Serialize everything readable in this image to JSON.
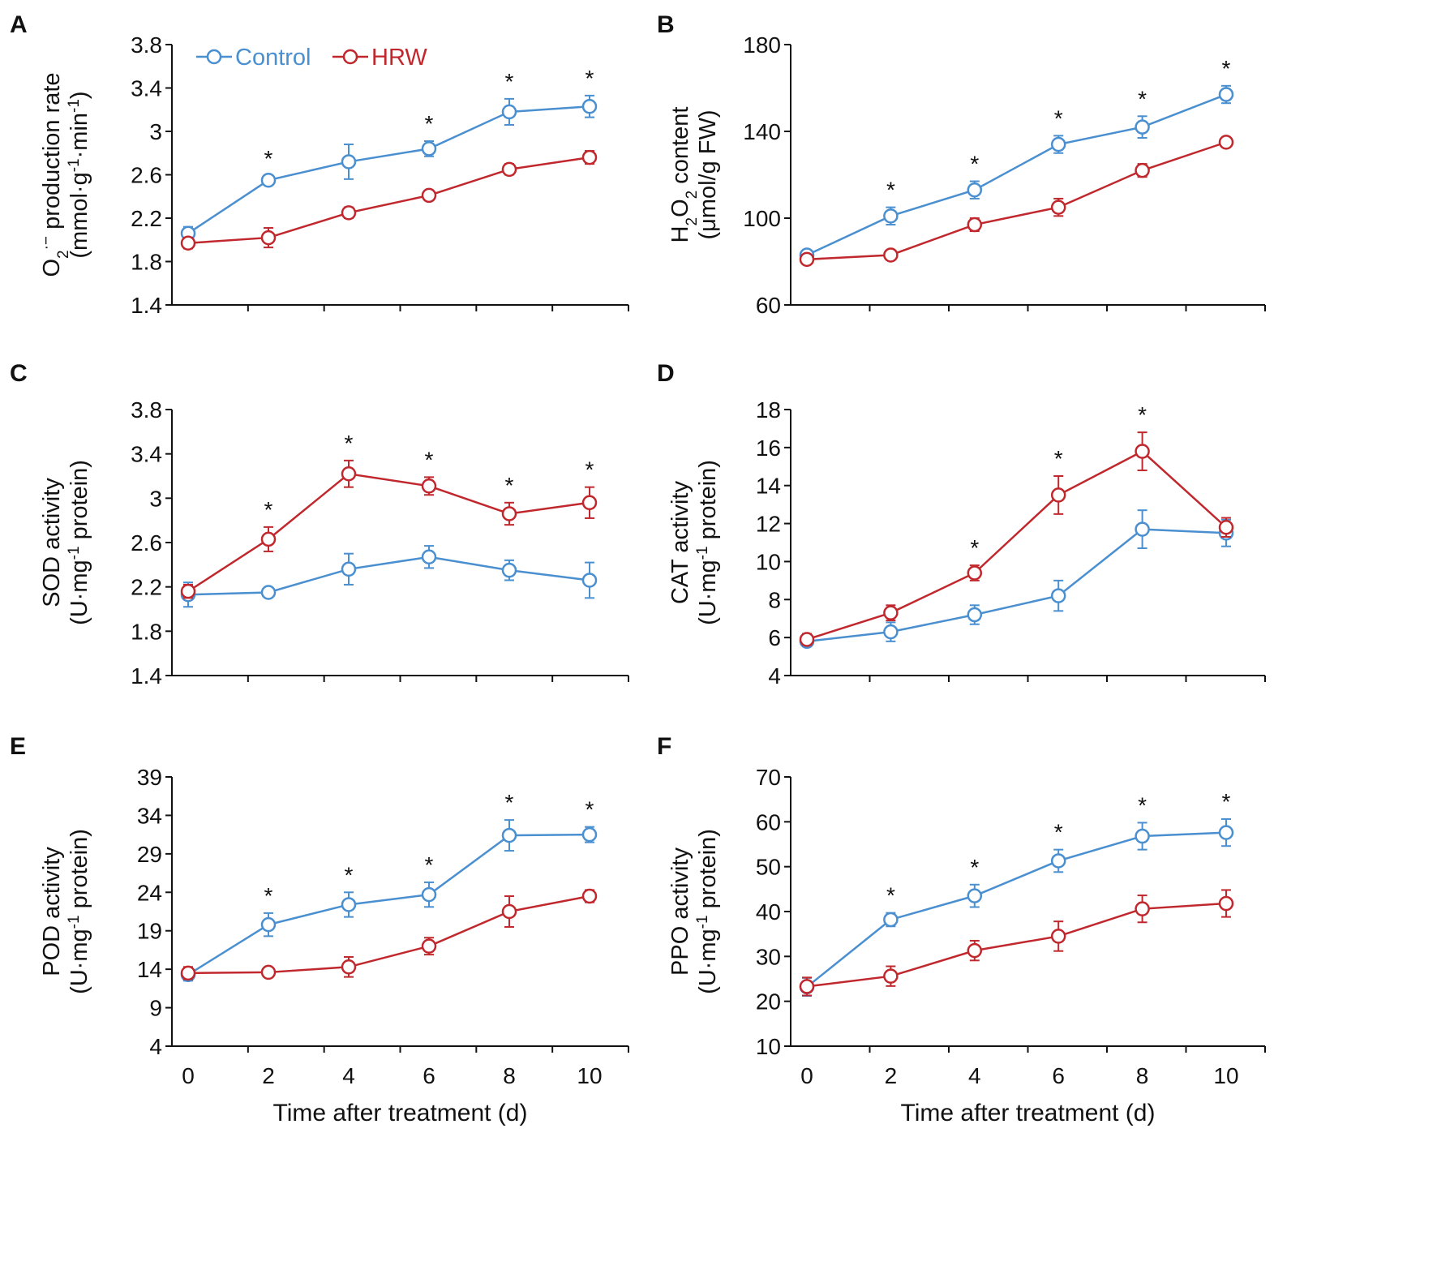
{
  "figure": {
    "colors": {
      "control": "#4a8fd0",
      "hrw": "#c0282d",
      "axis": "#111111"
    },
    "legend": [
      {
        "name": "Control",
        "color": "#4a8fd0"
      },
      {
        "name": "HRW",
        "color": "#c0282d"
      }
    ],
    "x_tick_labels": [
      "0",
      "2",
      "4",
      "6",
      "8",
      "10"
    ],
    "xlabel": "Time after treatment (d)"
  },
  "chart_data": [
    {
      "id": "A",
      "panel_label": "A",
      "type": "line",
      "title": "",
      "ylabel_line1_parts": [
        "O",
        "2",
        "·−",
        " production rate"
      ],
      "ylabel_line2_parts": [
        "(mmol·g",
        "-1",
        "·min",
        "-1",
        ")"
      ],
      "ylim": [
        1.4,
        3.8
      ],
      "yticks": [
        1.4,
        1.8,
        2.2,
        2.6,
        3.0,
        3.4,
        3.8
      ],
      "ytick_labels": [
        "1.4",
        "1.8",
        "2.2",
        "2.6",
        "3",
        "3.4",
        "3.8"
      ],
      "x": [
        0,
        2,
        4,
        6,
        8,
        10
      ],
      "series": [
        {
          "name": "Control",
          "values": [
            2.06,
            2.55,
            2.72,
            2.84,
            3.18,
            3.23
          ],
          "errors": [
            0.06,
            0.04,
            0.16,
            0.07,
            0.12,
            0.1
          ]
        },
        {
          "name": "HRW",
          "values": [
            1.97,
            2.02,
            2.25,
            2.41,
            2.65,
            2.76
          ],
          "errors": [
            0.05,
            0.09,
            0.05,
            0.04,
            0.05,
            0.06
          ]
        }
      ],
      "significance": [
        false,
        true,
        false,
        true,
        true,
        true
      ],
      "show_legend": true,
      "show_xticklabels": false
    },
    {
      "id": "B",
      "panel_label": "B",
      "type": "line",
      "title": "",
      "ylabel_line1_parts": [
        "H",
        "2",
        "O",
        "2",
        " content"
      ],
      "ylabel_line2_parts": [
        "(μmol/g FW)"
      ],
      "ylim": [
        60,
        180
      ],
      "yticks": [
        60,
        100,
        140,
        180
      ],
      "ytick_labels": [
        "60",
        "100",
        "140",
        "180"
      ],
      "x": [
        0,
        2,
        4,
        6,
        8,
        10
      ],
      "series": [
        {
          "name": "Control",
          "values": [
            83,
            101,
            113,
            134,
            142,
            157
          ],
          "errors": [
            2,
            4,
            4,
            4,
            5,
            4
          ]
        },
        {
          "name": "HRW",
          "values": [
            81,
            83,
            97,
            105,
            122,
            135
          ],
          "errors": [
            2,
            2,
            3,
            4,
            3,
            2
          ]
        }
      ],
      "significance": [
        false,
        true,
        true,
        true,
        true,
        true
      ],
      "show_legend": false,
      "show_xticklabels": false
    },
    {
      "id": "C",
      "panel_label": "C",
      "type": "line",
      "title": "",
      "ylabel_line1_parts": [
        "SOD activity"
      ],
      "ylabel_line2_parts": [
        "(U·mg",
        "-1",
        " protein)"
      ],
      "ylim": [
        1.4,
        3.8
      ],
      "yticks": [
        1.4,
        1.8,
        2.2,
        2.6,
        3.0,
        3.4,
        3.8
      ],
      "ytick_labels": [
        "1.4",
        "1.8",
        "2.2",
        "2.6",
        "3",
        "3.4",
        "3.8"
      ],
      "x": [
        0,
        2,
        4,
        6,
        8,
        10
      ],
      "series": [
        {
          "name": "Control",
          "values": [
            2.13,
            2.15,
            2.36,
            2.47,
            2.35,
            2.26
          ],
          "errors": [
            0.11,
            0.03,
            0.14,
            0.1,
            0.09,
            0.16
          ]
        },
        {
          "name": "HRW",
          "values": [
            2.16,
            2.63,
            3.22,
            3.11,
            2.86,
            2.96
          ],
          "errors": [
            0.06,
            0.11,
            0.12,
            0.08,
            0.1,
            0.14
          ]
        }
      ],
      "significance": [
        false,
        true,
        true,
        true,
        true,
        true
      ],
      "show_legend": false,
      "show_xticklabels": false
    },
    {
      "id": "D",
      "panel_label": "D",
      "type": "line",
      "title": "",
      "ylabel_line1_parts": [
        "CAT activity"
      ],
      "ylabel_line2_parts": [
        "(U·mg",
        "-1",
        " protein)"
      ],
      "ylim": [
        4,
        18
      ],
      "yticks": [
        4,
        6,
        8,
        10,
        12,
        14,
        16,
        18
      ],
      "ytick_labels": [
        "4",
        "6",
        "8",
        "10",
        "12",
        "14",
        "16",
        "18"
      ],
      "x": [
        0,
        2,
        4,
        6,
        8,
        10
      ],
      "series": [
        {
          "name": "Control",
          "values": [
            5.8,
            6.3,
            7.2,
            8.2,
            11.7,
            11.5
          ],
          "errors": [
            0.2,
            0.5,
            0.5,
            0.8,
            1.0,
            0.7
          ]
        },
        {
          "name": "HRW",
          "values": [
            5.9,
            7.3,
            9.4,
            13.5,
            15.8,
            11.8
          ],
          "errors": [
            0.3,
            0.4,
            0.4,
            1.0,
            1.0,
            0.5
          ]
        }
      ],
      "significance": [
        false,
        false,
        true,
        true,
        true,
        false
      ],
      "show_legend": false,
      "show_xticklabels": false
    },
    {
      "id": "E",
      "panel_label": "E",
      "type": "line",
      "title": "",
      "ylabel_line1_parts": [
        "POD activity"
      ],
      "ylabel_line2_parts": [
        "(U·mg",
        "-1",
        " protein)"
      ],
      "ylim": [
        4,
        39
      ],
      "yticks": [
        4,
        9,
        14,
        19,
        24,
        29,
        34,
        39
      ],
      "ytick_labels": [
        "4",
        "9",
        "14",
        "19",
        "24",
        "29",
        "34",
        "39"
      ],
      "x": [
        0,
        2,
        4,
        6,
        8,
        10
      ],
      "series": [
        {
          "name": "Control",
          "values": [
            13.3,
            19.8,
            22.4,
            23.7,
            31.4,
            31.5
          ],
          "errors": [
            0.8,
            1.5,
            1.6,
            1.6,
            2.0,
            1.0
          ]
        },
        {
          "name": "HRW",
          "values": [
            13.5,
            13.6,
            14.3,
            17.0,
            21.5,
            23.5
          ],
          "errors": [
            0.8,
            0.6,
            1.3,
            1.1,
            2.0,
            0.8
          ]
        }
      ],
      "significance": [
        false,
        true,
        true,
        true,
        true,
        true
      ],
      "show_legend": false,
      "show_xticklabels": true
    },
    {
      "id": "F",
      "panel_label": "F",
      "type": "line",
      "title": "",
      "ylabel_line1_parts": [
        "PPO activity"
      ],
      "ylabel_line2_parts": [
        "(U·mg",
        "-1",
        " protein)"
      ],
      "ylim": [
        10,
        70
      ],
      "yticks": [
        10,
        20,
        30,
        40,
        50,
        60,
        70
      ],
      "ytick_labels": [
        "10",
        "20",
        "30",
        "40",
        "50",
        "60",
        "70"
      ],
      "x": [
        0,
        2,
        4,
        6,
        8,
        10
      ],
      "series": [
        {
          "name": "Control",
          "values": [
            23.2,
            38.2,
            43.5,
            51.3,
            56.8,
            57.6
          ],
          "errors": [
            2,
            1.5,
            2.5,
            2.5,
            3,
            3
          ]
        },
        {
          "name": "HRW",
          "values": [
            23.3,
            25.6,
            31.3,
            34.5,
            40.6,
            41.8
          ],
          "errors": [
            2,
            2.2,
            2.2,
            3.3,
            3,
            3
          ]
        }
      ],
      "significance": [
        false,
        true,
        true,
        true,
        true,
        true
      ],
      "show_legend": false,
      "show_xticklabels": true
    }
  ]
}
